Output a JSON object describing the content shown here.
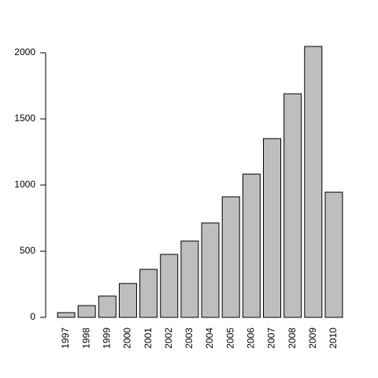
{
  "chart_data": {
    "type": "bar",
    "categories": [
      "1997",
      "1998",
      "1999",
      "2000",
      "2001",
      "2002",
      "2003",
      "2004",
      "2005",
      "2006",
      "2007",
      "2008",
      "2009",
      "2010"
    ],
    "values": [
      36,
      89,
      161,
      256,
      363,
      476,
      577,
      714,
      911,
      1083,
      1351,
      1690,
      2048,
      946
    ],
    "color": "#bebebe",
    "ylim": [
      0,
      2000
    ],
    "yticks": [
      0,
      500,
      1000,
      1500,
      2000
    ]
  }
}
